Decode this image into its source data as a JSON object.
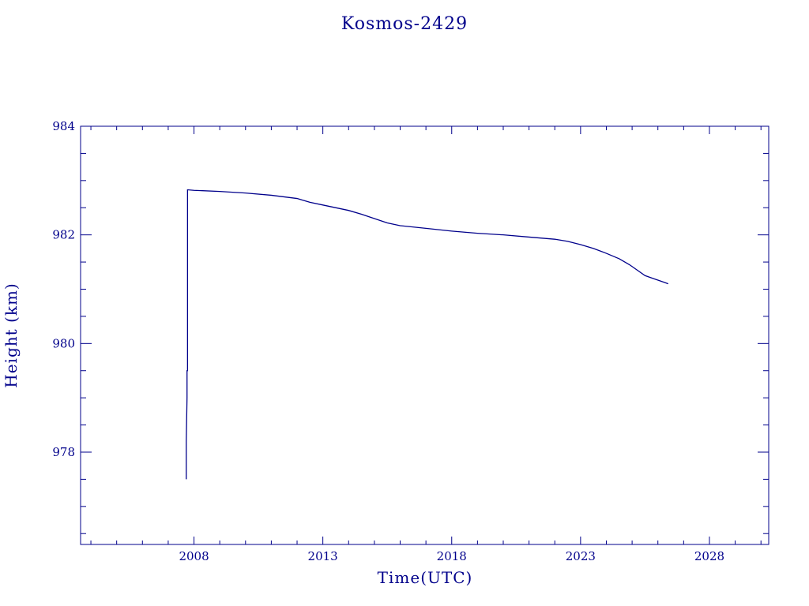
{
  "chart_data": {
    "type": "line",
    "title": "Kosmos-2429",
    "xlabel": "Time(UTC)",
    "ylabel": "Height (km)",
    "color": "#00008b",
    "grid": false,
    "xlim": [
      2003.6,
      2030.3
    ],
    "ylim": [
      976.3,
      984
    ],
    "x_ticks": [
      {
        "value": 2008,
        "label": "2008"
      },
      {
        "value": 2013,
        "label": "2013"
      },
      {
        "value": 2018,
        "label": "2018"
      },
      {
        "value": 2023,
        "label": "2023"
      },
      {
        "value": 2028,
        "label": "2028"
      }
    ],
    "y_ticks": [
      {
        "value": 978,
        "label": "978"
      },
      {
        "value": 980,
        "label": "980"
      },
      {
        "value": 982,
        "label": "982"
      },
      {
        "value": 984,
        "label": "984"
      }
    ],
    "series": [
      {
        "x": [
          2007.7,
          2007.7,
          2007.73,
          2007.73,
          2007.75,
          2007.75,
          2008,
          2009,
          2010,
          2011,
          2012,
          2012.5,
          2013,
          2014,
          2014.5,
          2015,
          2015.5,
          2016,
          2017,
          2018,
          2019,
          2020,
          2021,
          2022,
          2022.5,
          2023,
          2023.5,
          2024,
          2024.5,
          2024.9,
          2025.2,
          2025.5,
          2025.8,
          2026.1,
          2026.4
        ],
        "y": [
          977.5,
          978.2,
          979.0,
          979.5,
          979.5,
          982.83,
          982.82,
          982.8,
          982.77,
          982.73,
          982.67,
          982.6,
          982.55,
          982.45,
          982.38,
          982.3,
          982.22,
          982.17,
          982.12,
          982.07,
          982.03,
          982.0,
          981.96,
          981.92,
          981.88,
          981.82,
          981.75,
          981.66,
          981.56,
          981.45,
          981.35,
          981.25,
          981.2,
          981.15,
          981.1
        ]
      }
    ]
  }
}
